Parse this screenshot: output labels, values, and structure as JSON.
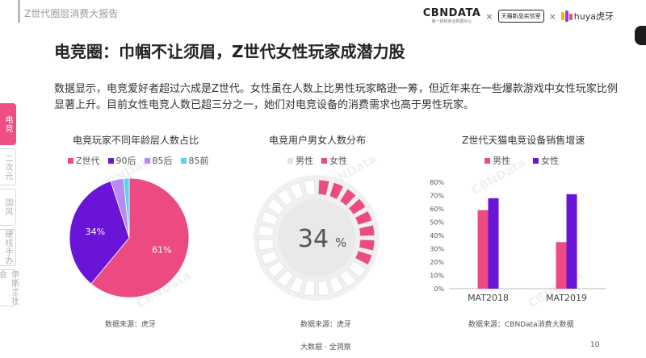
{
  "header": {
    "report_title": "Z世代圈层消费大报告",
    "logo_cbn": "CBNDATA",
    "logo_cbn_sub": "第一财经商业数据中心",
    "logo_times": "×",
    "logo_lab": "天猫新品实验室",
    "logo_times2": "×",
    "logo_huya": "huya虎牙"
  },
  "side_tabs": [
    "电竞",
    "二次元",
    "国风",
    "硬核手办",
    "伊斯兰社会"
  ],
  "main_title": "电竞圈：巾帼不让须眉，Z世代女性玩家成潜力股",
  "intro": "数据显示，电竞爱好者超过六成是Z世代。女性虽在人数上比男性玩家略逊一筹，但近年来在一些爆款游戏中女性玩家比例显著上升。目前女性电竞人数已超三分之一，她们对电竞设备的消费需求也高于男性玩家。",
  "watermark": "CBNData",
  "colors": {
    "pink": "#ec4a82",
    "purple": "#6a14d8",
    "lilac": "#b88bf0",
    "cyan": "#5ad3f0",
    "gray": "#e4e4e4"
  },
  "charts": {
    "age": {
      "title": "电竞玩家不同年龄层人数占比",
      "source": "数据来源：虎牙"
    },
    "gender": {
      "title": "电竞用户男女人数分布",
      "center_value": "34",
      "center_unit": "%",
      "source": "数据来源：虎牙"
    },
    "sales": {
      "title": "Z世代天猫电竞设备销售增速",
      "source": "数据来源：CBNData消费大数据"
    }
  },
  "chart_data": [
    {
      "type": "pie",
      "title": "电竞玩家不同年龄层人数占比",
      "categories": [
        "Z世代",
        "90后",
        "85后",
        "85前"
      ],
      "values": [
        61,
        34,
        3.5,
        1.5
      ],
      "labels": [
        "61%",
        "34%",
        "",
        ""
      ],
      "colors": [
        "#ec4a82",
        "#6a14d8",
        "#b88bf0",
        "#5ad3f0"
      ],
      "legend": "top"
    },
    {
      "type": "pie",
      "title": "电竞用户男女人数分布",
      "categories": [
        "男性",
        "女性"
      ],
      "values": [
        66,
        34
      ],
      "colors": [
        "#e4e4e4",
        "#ec4a82"
      ],
      "legend": "top"
    },
    {
      "type": "bar",
      "title": "Z世代天猫电竞设备销售增速",
      "categories": [
        "MAT2018",
        "MAT2019"
      ],
      "series": [
        {
          "name": "男性",
          "values": [
            59,
            35
          ],
          "color": "#ec4a82"
        },
        {
          "name": "女性",
          "values": [
            68,
            71
          ],
          "color": "#6a14d8"
        }
      ],
      "y_ticks": [
        "0%",
        "10%",
        "20%",
        "30%",
        "40%",
        "50%",
        "60%",
        "70%",
        "80%"
      ],
      "ylim": [
        0,
        80
      ],
      "legend": "top",
      "grid": false
    }
  ],
  "footer": {
    "text": "大数据 · 全洞察",
    "page": "10"
  }
}
